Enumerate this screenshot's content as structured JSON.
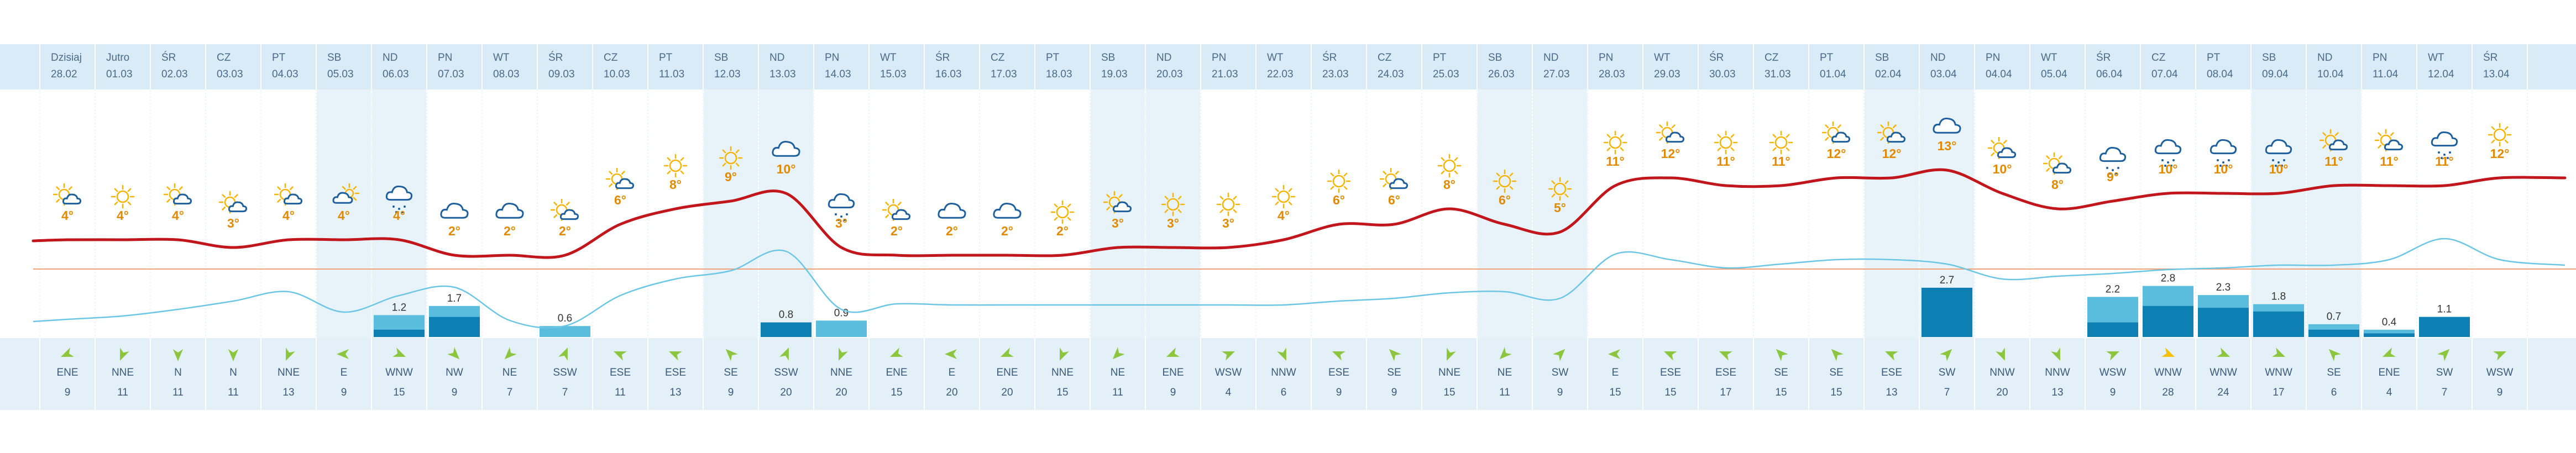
{
  "colors": {
    "weekend_band": "#e8f3f9",
    "header_band": "#d9ebf6",
    "wind_band": "#e4f0f7",
    "temp_line": "#c0161c",
    "cloud_line": "#6bc6e4",
    "ref_line": "#f2a07a",
    "bar_light": "#5bbddd",
    "bar_dark": "#0d7fb3",
    "sun": "#f6b400",
    "cloud": "#1e5f9e",
    "temp_text": "#e08a00",
    "wind_arrow": "#8cc63f",
    "wind_arrow_strong": "#f5c000"
  },
  "days": [
    {
      "day": "Dzisiaj",
      "date": "28.02",
      "weekend": false,
      "temp": 4,
      "icon": "sun-cloud",
      "precip_total": null,
      "precip_dark": null,
      "wind_dir": "ENE",
      "wind_speed": 9,
      "wind_strong": false
    },
    {
      "day": "Jutro",
      "date": "01.03",
      "weekend": false,
      "temp": 4,
      "icon": "sun",
      "precip_total": null,
      "precip_dark": null,
      "wind_dir": "NNE",
      "wind_speed": 11,
      "wind_strong": false
    },
    {
      "day": "ŚR",
      "date": "02.03",
      "weekend": false,
      "temp": 4,
      "icon": "sun-cloud",
      "precip_total": null,
      "precip_dark": null,
      "wind_dir": "N",
      "wind_speed": 11,
      "wind_strong": false
    },
    {
      "day": "CZ",
      "date": "03.03",
      "weekend": false,
      "temp": 3,
      "icon": "sun-cloud",
      "precip_total": null,
      "precip_dark": null,
      "wind_dir": "N",
      "wind_speed": 11,
      "wind_strong": false
    },
    {
      "day": "PT",
      "date": "04.03",
      "weekend": false,
      "temp": 4,
      "icon": "sun-cloud",
      "precip_total": null,
      "precip_dark": null,
      "wind_dir": "NNE",
      "wind_speed": 13,
      "wind_strong": false
    },
    {
      "day": "SB",
      "date": "05.03",
      "weekend": true,
      "temp": 4,
      "icon": "cloud-sun",
      "precip_total": null,
      "precip_dark": null,
      "wind_dir": "E",
      "wind_speed": 9,
      "wind_strong": false
    },
    {
      "day": "ND",
      "date": "06.03",
      "weekend": true,
      "temp": 4,
      "icon": "cloud-snow",
      "precip_total": 1.2,
      "precip_dark": 0.4,
      "wind_dir": "WNW",
      "wind_speed": 15,
      "wind_strong": false
    },
    {
      "day": "PN",
      "date": "07.03",
      "weekend": false,
      "temp": 2,
      "icon": "cloud",
      "precip_total": 1.7,
      "precip_dark": 1.1,
      "wind_dir": "NW",
      "wind_speed": 9,
      "wind_strong": false
    },
    {
      "day": "WT",
      "date": "08.03",
      "weekend": false,
      "temp": 2,
      "icon": "cloud",
      "precip_total": null,
      "precip_dark": null,
      "wind_dir": "NE",
      "wind_speed": 7,
      "wind_strong": false
    },
    {
      "day": "ŚR",
      "date": "09.03",
      "weekend": false,
      "temp": 2,
      "icon": "sun-cloud",
      "precip_total": 0.6,
      "precip_dark": null,
      "wind_dir": "SSW",
      "wind_speed": 7,
      "wind_strong": false
    },
    {
      "day": "CZ",
      "date": "10.03",
      "weekend": false,
      "temp": 6,
      "icon": "sun-cloud",
      "precip_total": null,
      "precip_dark": null,
      "wind_dir": "ESE",
      "wind_speed": 11,
      "wind_strong": false
    },
    {
      "day": "PT",
      "date": "11.03",
      "weekend": false,
      "temp": 8,
      "icon": "sun",
      "precip_total": null,
      "precip_dark": null,
      "wind_dir": "ESE",
      "wind_speed": 13,
      "wind_strong": false
    },
    {
      "day": "SB",
      "date": "12.03",
      "weekend": true,
      "temp": 9,
      "icon": "sun",
      "precip_total": null,
      "precip_dark": null,
      "wind_dir": "SE",
      "wind_speed": 9,
      "wind_strong": false
    },
    {
      "day": "ND",
      "date": "13.03",
      "weekend": true,
      "temp": 10,
      "icon": "cloud",
      "precip_total": 0.8,
      "precip_dark": 0.8,
      "wind_dir": "SSW",
      "wind_speed": 20,
      "wind_strong": false
    },
    {
      "day": "PN",
      "date": "14.03",
      "weekend": false,
      "temp": 3,
      "icon": "cloud-snow",
      "precip_total": 0.9,
      "precip_dark": null,
      "wind_dir": "NNE",
      "wind_speed": 20,
      "wind_strong": false
    },
    {
      "day": "WT",
      "date": "15.03",
      "weekend": false,
      "temp": 2,
      "icon": "sun-cloud",
      "precip_total": null,
      "precip_dark": null,
      "wind_dir": "ENE",
      "wind_speed": 15,
      "wind_strong": false
    },
    {
      "day": "ŚR",
      "date": "16.03",
      "weekend": false,
      "temp": 2,
      "icon": "cloud",
      "precip_total": null,
      "precip_dark": null,
      "wind_dir": "E",
      "wind_speed": 20,
      "wind_strong": false
    },
    {
      "day": "CZ",
      "date": "17.03",
      "weekend": false,
      "temp": 2,
      "icon": "cloud",
      "precip_total": null,
      "precip_dark": null,
      "wind_dir": "ENE",
      "wind_speed": 20,
      "wind_strong": false
    },
    {
      "day": "PT",
      "date": "18.03",
      "weekend": false,
      "temp": 2,
      "icon": "sun",
      "precip_total": null,
      "precip_dark": null,
      "wind_dir": "NNE",
      "wind_speed": 15,
      "wind_strong": false
    },
    {
      "day": "SB",
      "date": "19.03",
      "weekend": true,
      "temp": 3,
      "icon": "sun-cloud",
      "precip_total": null,
      "precip_dark": null,
      "wind_dir": "NE",
      "wind_speed": 11,
      "wind_strong": false
    },
    {
      "day": "ND",
      "date": "20.03",
      "weekend": true,
      "temp": 3,
      "icon": "sun",
      "precip_total": null,
      "precip_dark": null,
      "wind_dir": "ENE",
      "wind_speed": 9,
      "wind_strong": false
    },
    {
      "day": "PN",
      "date": "21.03",
      "weekend": false,
      "temp": 3,
      "icon": "sun",
      "precip_total": null,
      "precip_dark": null,
      "wind_dir": "WSW",
      "wind_speed": 4,
      "wind_strong": false
    },
    {
      "day": "WT",
      "date": "22.03",
      "weekend": false,
      "temp": 4,
      "icon": "sun",
      "precip_total": null,
      "precip_dark": null,
      "wind_dir": "NNW",
      "wind_speed": 6,
      "wind_strong": false
    },
    {
      "day": "ŚR",
      "date": "23.03",
      "weekend": false,
      "temp": 6,
      "icon": "sun",
      "precip_total": null,
      "precip_dark": null,
      "wind_dir": "ESE",
      "wind_speed": 9,
      "wind_strong": false
    },
    {
      "day": "CZ",
      "date": "24.03",
      "weekend": false,
      "temp": 6,
      "icon": "sun-cloud",
      "precip_total": null,
      "precip_dark": null,
      "wind_dir": "SE",
      "wind_speed": 9,
      "wind_strong": false
    },
    {
      "day": "PT",
      "date": "25.03",
      "weekend": false,
      "temp": 8,
      "icon": "sun",
      "precip_total": null,
      "precip_dark": null,
      "wind_dir": "NNE",
      "wind_speed": 15,
      "wind_strong": false
    },
    {
      "day": "SB",
      "date": "26.03",
      "weekend": true,
      "temp": 6,
      "icon": "sun",
      "precip_total": null,
      "precip_dark": null,
      "wind_dir": "NE",
      "wind_speed": 11,
      "wind_strong": false
    },
    {
      "day": "ND",
      "date": "27.03",
      "weekend": true,
      "temp": 5,
      "icon": "sun",
      "precip_total": null,
      "precip_dark": null,
      "wind_dir": "SW",
      "wind_speed": 9,
      "wind_strong": false
    },
    {
      "day": "PN",
      "date": "28.03",
      "weekend": false,
      "temp": 11,
      "icon": "sun",
      "precip_total": null,
      "precip_dark": null,
      "wind_dir": "E",
      "wind_speed": 15,
      "wind_strong": false
    },
    {
      "day": "WT",
      "date": "29.03",
      "weekend": false,
      "temp": 12,
      "icon": "sun-cloud",
      "precip_total": null,
      "precip_dark": null,
      "wind_dir": "ESE",
      "wind_speed": 15,
      "wind_strong": false
    },
    {
      "day": "ŚR",
      "date": "30.03",
      "weekend": false,
      "temp": 11,
      "icon": "sun",
      "precip_total": null,
      "precip_dark": null,
      "wind_dir": "ESE",
      "wind_speed": 17,
      "wind_strong": false
    },
    {
      "day": "CZ",
      "date": "31.03",
      "weekend": false,
      "temp": 11,
      "icon": "sun",
      "precip_total": null,
      "precip_dark": null,
      "wind_dir": "SE",
      "wind_speed": 15,
      "wind_strong": false
    },
    {
      "day": "PT",
      "date": "01.04",
      "weekend": false,
      "temp": 12,
      "icon": "sun-cloud",
      "precip_total": null,
      "precip_dark": null,
      "wind_dir": "SE",
      "wind_speed": 15,
      "wind_strong": false
    },
    {
      "day": "SB",
      "date": "02.04",
      "weekend": true,
      "temp": 12,
      "icon": "sun-cloud",
      "precip_total": null,
      "precip_dark": null,
      "wind_dir": "ESE",
      "wind_speed": 13,
      "wind_strong": false
    },
    {
      "day": "ND",
      "date": "03.04",
      "weekend": true,
      "temp": 13,
      "icon": "cloud",
      "precip_total": 2.7,
      "precip_dark": 2.7,
      "wind_dir": "SW",
      "wind_speed": 7,
      "wind_strong": false
    },
    {
      "day": "PN",
      "date": "04.04",
      "weekend": false,
      "temp": 10,
      "icon": "sun-cloud",
      "precip_total": null,
      "precip_dark": null,
      "wind_dir": "NNW",
      "wind_speed": 20,
      "wind_strong": false
    },
    {
      "day": "WT",
      "date": "05.04",
      "weekend": false,
      "temp": 8,
      "icon": "sun-cloud",
      "precip_total": null,
      "precip_dark": null,
      "wind_dir": "NNW",
      "wind_speed": 13,
      "wind_strong": false
    },
    {
      "day": "ŚR",
      "date": "06.04",
      "weekend": false,
      "temp": 9,
      "icon": "cloud-snow",
      "precip_total": 2.2,
      "precip_dark": 0.8,
      "wind_dir": "WSW",
      "wind_speed": 9,
      "wind_strong": false
    },
    {
      "day": "CZ",
      "date": "07.04",
      "weekend": false,
      "temp": 10,
      "icon": "cloud-snow",
      "precip_total": 2.8,
      "precip_dark": 1.7,
      "wind_dir": "WNW",
      "wind_speed": 28,
      "wind_strong": true
    },
    {
      "day": "PT",
      "date": "08.04",
      "weekend": false,
      "temp": 10,
      "icon": "cloud-snow",
      "precip_total": 2.3,
      "precip_dark": 1.6,
      "wind_dir": "WNW",
      "wind_speed": 24,
      "wind_strong": false
    },
    {
      "day": "SB",
      "date": "09.04",
      "weekend": true,
      "temp": 10,
      "icon": "cloud-snow",
      "precip_total": 1.8,
      "precip_dark": 1.4,
      "wind_dir": "WNW",
      "wind_speed": 17,
      "wind_strong": false
    },
    {
      "day": "ND",
      "date": "10.04",
      "weekend": true,
      "temp": 11,
      "icon": "sun-cloud",
      "precip_total": 0.7,
      "precip_dark": 0.4,
      "wind_dir": "SE",
      "wind_speed": 6,
      "wind_strong": false
    },
    {
      "day": "PN",
      "date": "11.04",
      "weekend": false,
      "temp": 11,
      "icon": "sun-cloud",
      "precip_total": 0.4,
      "precip_dark": 0.2,
      "wind_dir": "ENE",
      "wind_speed": 4,
      "wind_strong": false
    },
    {
      "day": "WT",
      "date": "12.04",
      "weekend": false,
      "temp": 11,
      "icon": "cloud-snow",
      "precip_total": 1.1,
      "precip_dark": 1.1,
      "wind_dir": "SW",
      "wind_speed": 7,
      "wind_strong": false
    },
    {
      "day": "ŚR",
      "date": "13.04",
      "weekend": false,
      "temp": 12,
      "icon": "sun",
      "precip_total": null,
      "precip_dark": null,
      "wind_dir": "WSW",
      "wind_speed": 9,
      "wind_strong": false
    }
  ],
  "chart_data": {
    "type": "line",
    "x": [
      "28.02",
      "01.03",
      "02.03",
      "03.03",
      "04.03",
      "05.03",
      "06.03",
      "07.03",
      "08.03",
      "09.03",
      "10.03",
      "11.03",
      "12.03",
      "13.03",
      "14.03",
      "15.03",
      "16.03",
      "17.03",
      "18.03",
      "19.03",
      "20.03",
      "21.03",
      "22.03",
      "23.03",
      "24.03",
      "25.03",
      "26.03",
      "27.03",
      "28.03",
      "29.03",
      "30.03",
      "31.03",
      "01.04",
      "02.04",
      "03.04",
      "04.04",
      "05.04",
      "06.04",
      "07.04",
      "08.04",
      "09.04",
      "10.04",
      "11.04",
      "12.04",
      "13.04"
    ],
    "series": [
      {
        "values": [
          4,
          4,
          4,
          3,
          4,
          4,
          4,
          2,
          2,
          2,
          6,
          8,
          9,
          10,
          3,
          2,
          2,
          2,
          2,
          3,
          3,
          3,
          4,
          6,
          6,
          8,
          6,
          5,
          11,
          12,
          11,
          11,
          12,
          12,
          13,
          10,
          8,
          9,
          10,
          10,
          10,
          11,
          11,
          11,
          12
        ]
      }
    ],
    "precipitation": [
      null,
      null,
      null,
      null,
      null,
      null,
      1.2,
      1.7,
      null,
      0.6,
      null,
      null,
      null,
      0.8,
      0.9,
      null,
      null,
      null,
      null,
      null,
      null,
      null,
      null,
      null,
      null,
      null,
      null,
      null,
      null,
      null,
      null,
      null,
      null,
      null,
      2.7,
      null,
      null,
      2.2,
      2.8,
      2.3,
      1.8,
      0.7,
      0.4,
      1.1,
      null
    ],
    "title": "",
    "xlabel": "",
    "ylabel": ""
  }
}
